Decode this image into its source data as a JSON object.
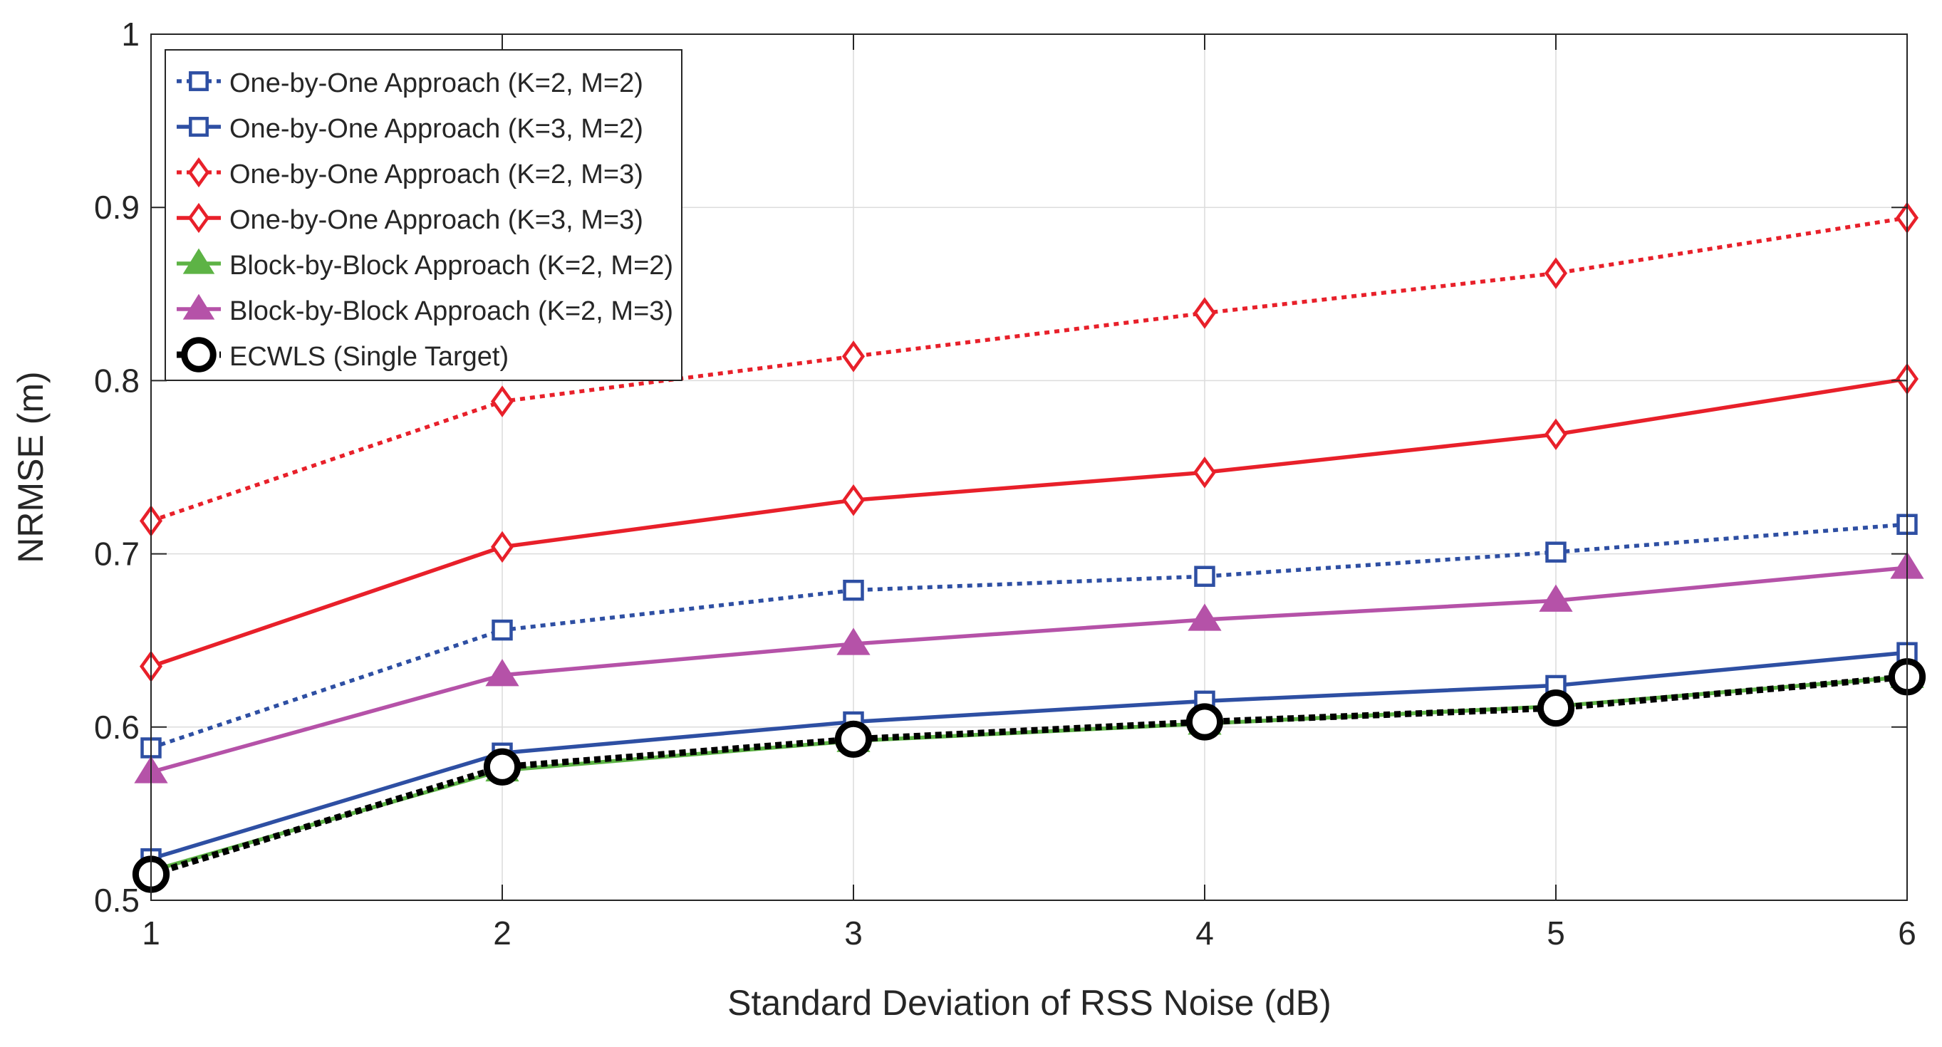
{
  "chart_data": {
    "type": "line",
    "title": "",
    "xlabel": "Standard Deviation of RSS Noise (dB)",
    "ylabel": "NRMSE (m)",
    "x": [
      1,
      2,
      3,
      4,
      5,
      6
    ],
    "xlim": [
      1,
      6
    ],
    "ylim": [
      0.5,
      1
    ],
    "xticks": [
      1,
      2,
      3,
      4,
      5,
      6
    ],
    "yticks": [
      0.5,
      0.6,
      0.7,
      0.8,
      0.9,
      1
    ],
    "xtick_labels": [
      "1",
      "2",
      "3",
      "4",
      "5",
      "6"
    ],
    "ytick_labels": [
      "0.5",
      "0.6",
      "0.7",
      "0.8",
      "0.9",
      "1"
    ],
    "grid": true,
    "legend_position": "top-left",
    "series": [
      {
        "name": "One-by-One Approach (K=2, M=2)",
        "values": [
          0.588,
          0.656,
          0.679,
          0.687,
          0.701,
          0.717
        ],
        "color": "#2E4FA3",
        "line_style": "dotted",
        "marker": "square"
      },
      {
        "name": "One-by-One Approach (K=3, M=2)",
        "values": [
          0.524,
          0.585,
          0.603,
          0.615,
          0.624,
          0.643
        ],
        "color": "#2E4FA3",
        "line_style": "solid",
        "marker": "square"
      },
      {
        "name": "One-by-One Approach (K=2, M=3)",
        "values": [
          0.719,
          0.788,
          0.814,
          0.839,
          0.862,
          0.894
        ],
        "color": "#E8202A",
        "line_style": "dotted",
        "marker": "diamond"
      },
      {
        "name": "One-by-One Approach (K=3, M=3)",
        "values": [
          0.635,
          0.704,
          0.731,
          0.747,
          0.769,
          0.801
        ],
        "color": "#E8202A",
        "line_style": "solid",
        "marker": "diamond"
      },
      {
        "name": "Block-by-Block Approach (K=2, M=2)",
        "values": [
          0.517,
          0.575,
          0.592,
          0.602,
          0.612,
          0.629
        ],
        "color": "#5DB345",
        "line_style": "solid",
        "marker": "triangle"
      },
      {
        "name": "Block-by-Block Approach (K=2, M=3)",
        "values": [
          0.574,
          0.63,
          0.648,
          0.662,
          0.673,
          0.692
        ],
        "color": "#B552A8",
        "line_style": "solid",
        "marker": "triangle"
      },
      {
        "name": "ECWLS (Single Target)",
        "values": [
          0.515,
          0.577,
          0.593,
          0.603,
          0.611,
          0.629
        ],
        "color": "#000000",
        "line_style": "dotted",
        "marker": "circle"
      }
    ]
  }
}
